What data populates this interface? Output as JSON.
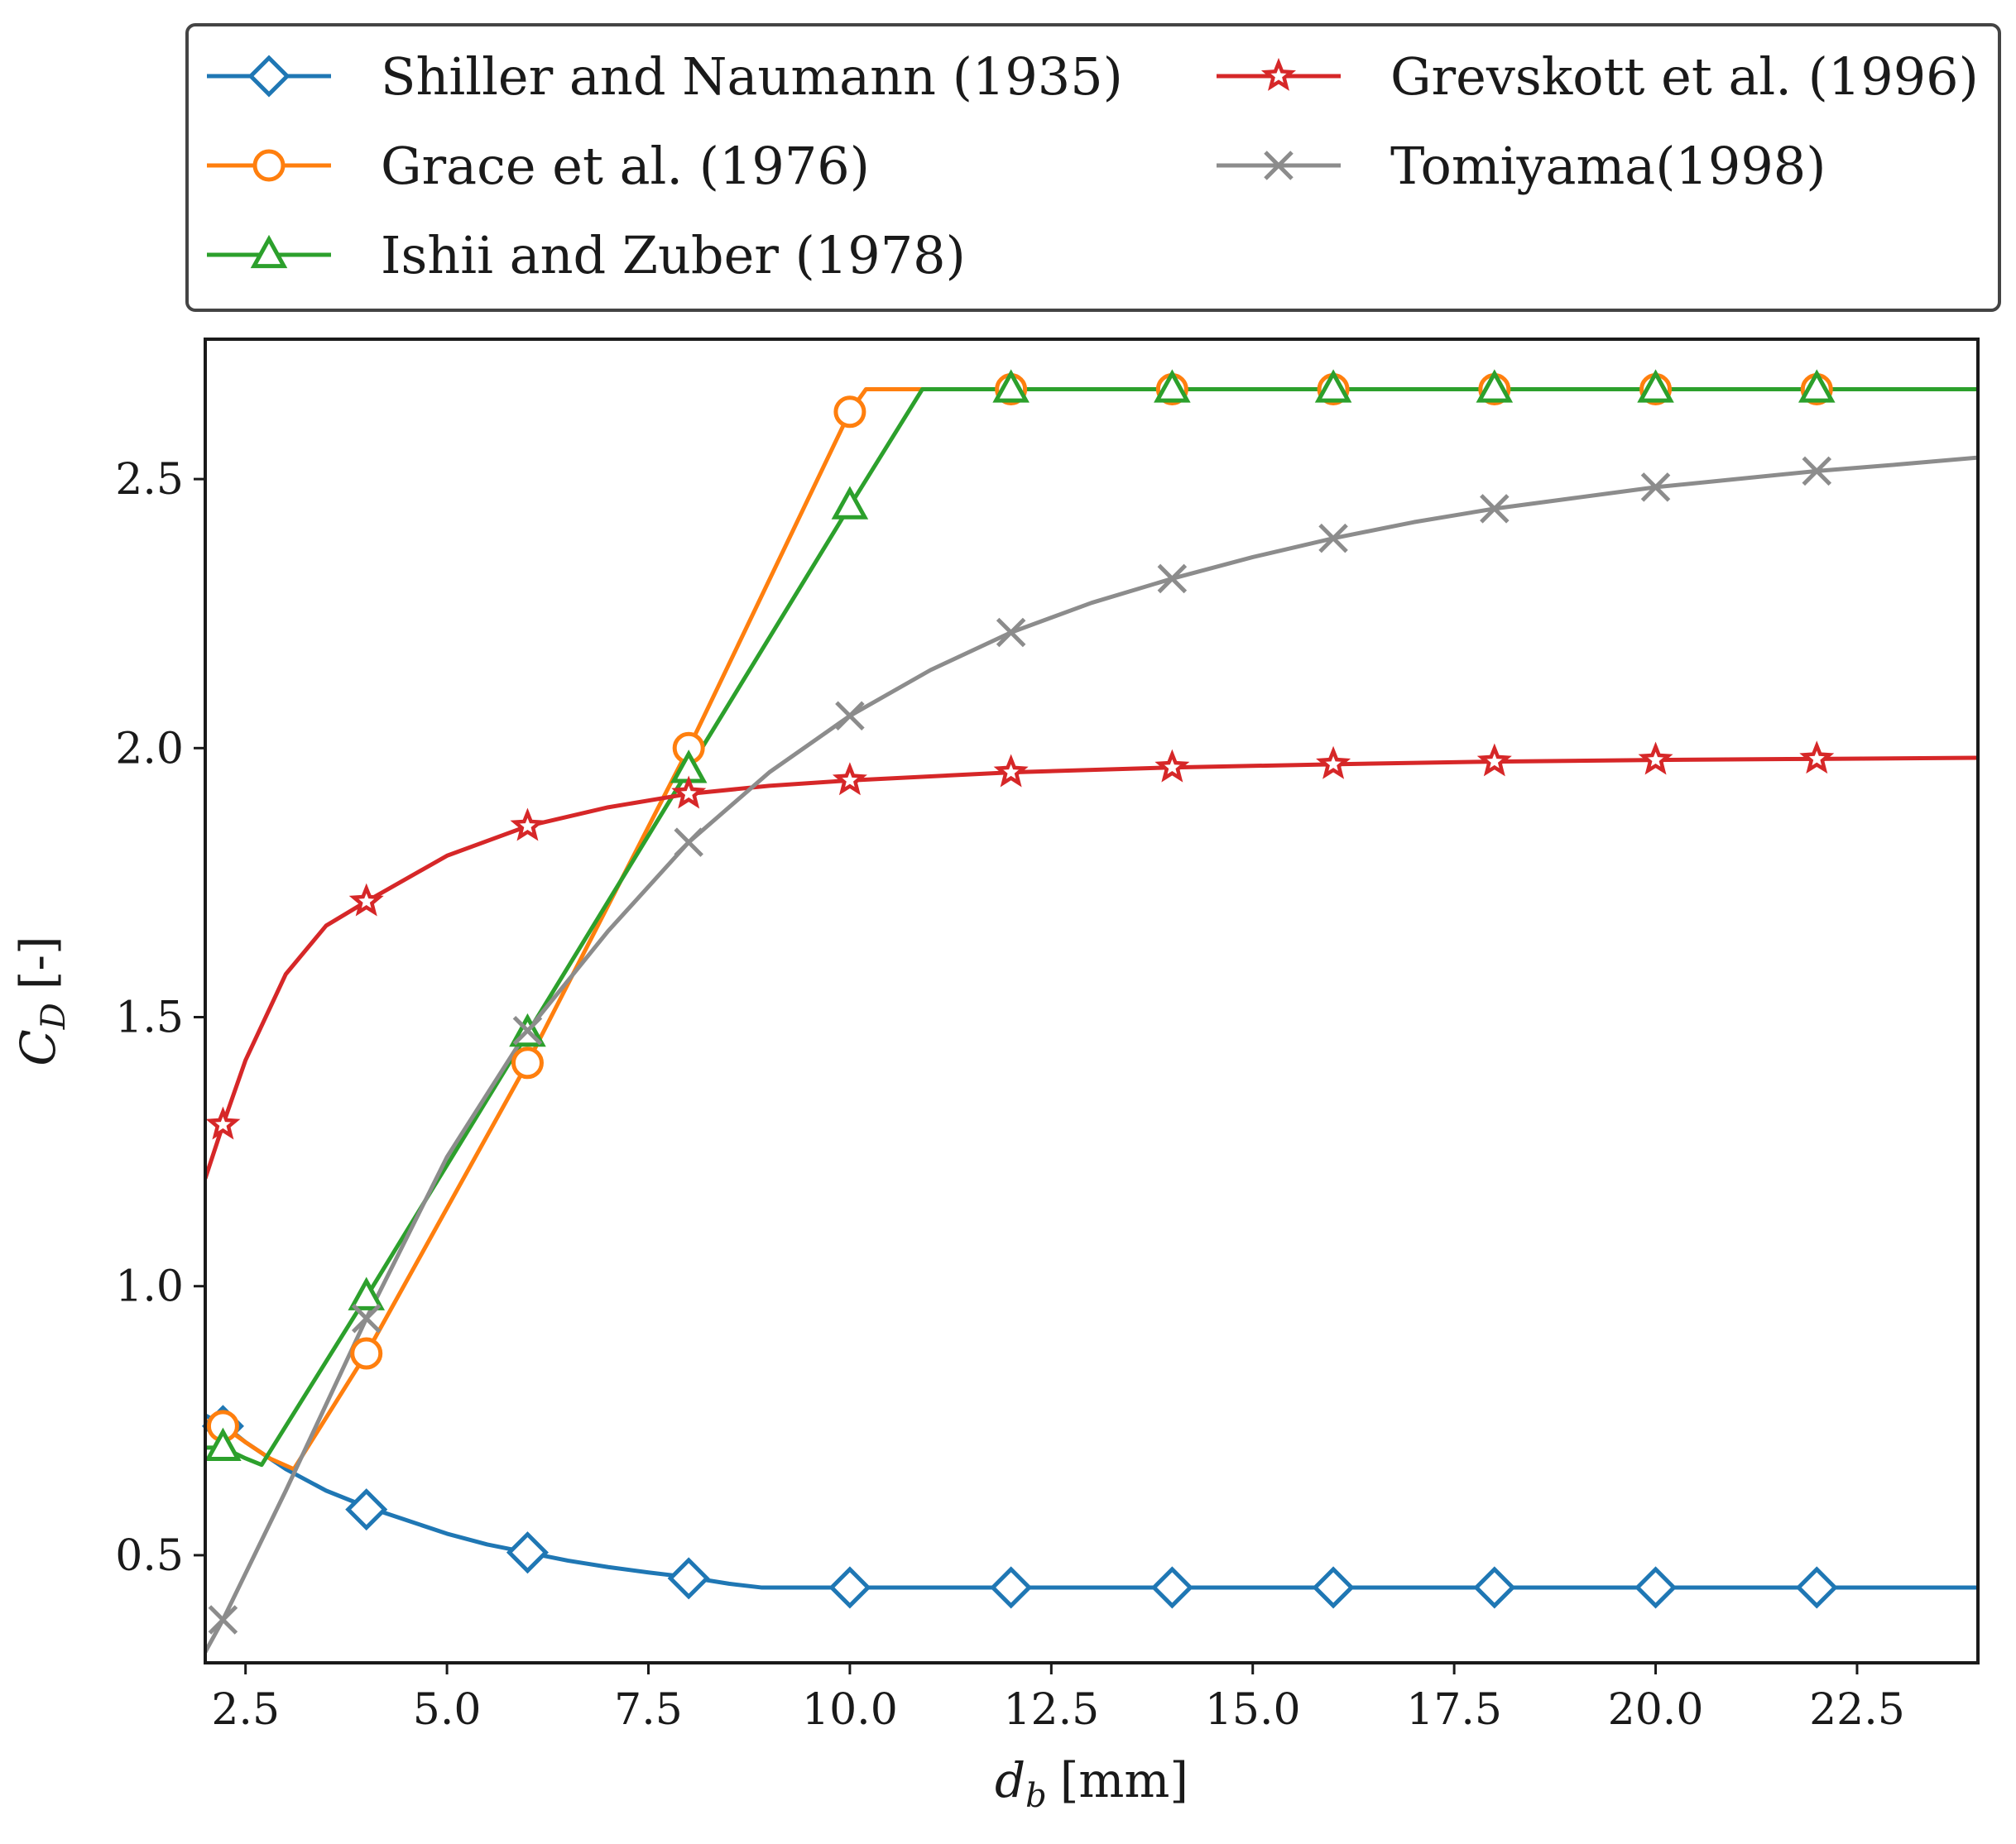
{
  "chart_data": {
    "type": "line",
    "title": "",
    "xlabel": "d_b [mm]",
    "xlabel_main": "d",
    "xlabel_sub": "b",
    "xlabel_unit": "[mm]",
    "ylabel": "C_D [-]",
    "ylabel_main": "C",
    "ylabel_sub": "D",
    "ylabel_unit": "[-]",
    "xlim": [
      2.0,
      24.0
    ],
    "ylim": [
      0.3,
      2.76
    ],
    "xticks": [
      2.5,
      5.0,
      7.5,
      10.0,
      12.5,
      15.0,
      17.5,
      20.0,
      22.5
    ],
    "xtick_labels": [
      "2.5",
      "5.0",
      "7.5",
      "10.0",
      "12.5",
      "15.0",
      "17.5",
      "20.0",
      "22.5"
    ],
    "yticks": [
      0.5,
      1.0,
      1.5,
      2.0,
      2.5
    ],
    "ytick_labels": [
      "0.5",
      "1.0",
      "1.5",
      "2.0",
      "2.5"
    ],
    "grid": false,
    "legend_position": "top, outside plot, two columns",
    "series": [
      {
        "name": "Shiller and Naumann (1935)",
        "color": "#1f77b4",
        "marker": "diamond",
        "x": [
          2.0,
          2.25,
          2.5,
          3.0,
          3.5,
          4.0,
          4.5,
          5.0,
          5.5,
          6.0,
          6.5,
          7.0,
          7.5,
          8.0,
          8.5,
          8.9,
          9.5,
          10.0,
          12.0,
          14.0,
          16.0,
          18.0,
          20.0,
          22.0,
          24.0
        ],
        "y": [
          0.76,
          0.74,
          0.71,
          0.66,
          0.62,
          0.59,
          0.565,
          0.54,
          0.52,
          0.505,
          0.49,
          0.478,
          0.468,
          0.459,
          0.447,
          0.44,
          0.44,
          0.44,
          0.44,
          0.44,
          0.44,
          0.44,
          0.44,
          0.44,
          0.44
        ],
        "marker_x": [
          2.22,
          4.0,
          6.0,
          8.0,
          10.0,
          12.0,
          14.0,
          16.0,
          18.0,
          20.0,
          22.0
        ],
        "marker_y": [
          0.74,
          0.585,
          0.505,
          0.457,
          0.44,
          0.44,
          0.44,
          0.44,
          0.44,
          0.44,
          0.44
        ]
      },
      {
        "name": "Grace et al. (1976)",
        "color": "#ff7f0e",
        "marker": "circle",
        "x": [
          2.0,
          2.22,
          2.5,
          2.8,
          3.1,
          4.0,
          6.0,
          8.0,
          10.0,
          10.2,
          24.0
        ],
        "y": [
          0.75,
          0.74,
          0.71,
          0.68,
          0.66,
          0.875,
          1.415,
          2.0,
          2.625,
          2.667,
          2.667
        ],
        "marker_x": [
          2.22,
          4.0,
          6.0,
          8.0,
          10.0,
          12.0,
          14.0,
          16.0,
          18.0,
          20.0,
          22.0
        ],
        "marker_y": [
          0.74,
          0.875,
          1.415,
          2.0,
          2.625,
          2.667,
          2.667,
          2.667,
          2.667,
          2.667,
          2.667
        ]
      },
      {
        "name": "Ishii and Zuber (1978)",
        "color": "#2ca02c",
        "marker": "triangle",
        "x": [
          2.0,
          2.22,
          2.5,
          2.7,
          4.0,
          6.0,
          8.0,
          10.0,
          10.9,
          24.0
        ],
        "y": [
          0.7,
          0.7,
          0.68,
          0.668,
          0.98,
          1.47,
          1.96,
          2.45,
          2.667,
          2.667
        ],
        "marker_x": [
          2.22,
          4.0,
          6.0,
          8.0,
          10.0,
          12.0,
          14.0,
          16.0,
          18.0,
          20.0,
          22.0
        ],
        "marker_y": [
          0.7,
          0.98,
          1.47,
          1.96,
          2.45,
          2.667,
          2.667,
          2.667,
          2.667,
          2.667,
          2.667
        ]
      },
      {
        "name": "Grevskott et al. (1996)",
        "color": "#d62728",
        "marker": "star",
        "x": [
          2.0,
          2.22,
          2.5,
          3.0,
          3.5,
          4.0,
          5.0,
          6.0,
          7.0,
          8.0,
          9.0,
          10.0,
          12.0,
          14.0,
          16.0,
          18.0,
          20.0,
          22.0,
          24.0
        ],
        "y": [
          1.2,
          1.3,
          1.42,
          1.58,
          1.67,
          1.715,
          1.8,
          1.855,
          1.89,
          1.915,
          1.93,
          1.94,
          1.955,
          1.964,
          1.97,
          1.975,
          1.978,
          1.98,
          1.982
        ],
        "marker_x": [
          2.22,
          4.0,
          6.0,
          8.0,
          10.0,
          12.0,
          14.0,
          16.0,
          18.0,
          20.0,
          22.0
        ],
        "marker_y": [
          1.3,
          1.715,
          1.855,
          1.915,
          1.94,
          1.955,
          1.964,
          1.97,
          1.975,
          1.978,
          1.98
        ]
      },
      {
        "name": "Tomiyama(1998)",
        "color": "#8c8c8c",
        "marker": "x",
        "x": [
          2.0,
          2.22,
          3.0,
          4.0,
          5.0,
          6.0,
          7.0,
          8.0,
          9.0,
          10.0,
          11.0,
          12.0,
          13.0,
          14.0,
          15.0,
          16.0,
          17.0,
          18.0,
          19.0,
          20.0,
          21.0,
          22.0,
          23.0,
          24.0
        ],
        "y": [
          0.32,
          0.38,
          0.62,
          0.94,
          1.24,
          1.475,
          1.66,
          1.825,
          1.955,
          2.06,
          2.145,
          2.215,
          2.27,
          2.315,
          2.355,
          2.39,
          2.42,
          2.445,
          2.465,
          2.485,
          2.5,
          2.515,
          2.527,
          2.54
        ],
        "marker_x": [
          2.22,
          4.0,
          6.0,
          8.0,
          10.0,
          12.0,
          14.0,
          16.0,
          18.0,
          20.0,
          22.0
        ],
        "marker_y": [
          0.38,
          0.94,
          1.475,
          1.825,
          2.06,
          2.215,
          2.315,
          2.39,
          2.445,
          2.485,
          2.515
        ]
      }
    ]
  }
}
